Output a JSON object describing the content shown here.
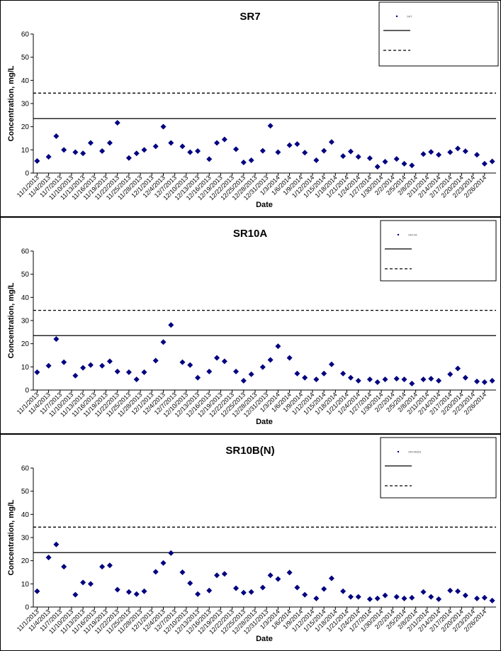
{
  "chart_data": [
    {
      "type": "scatter",
      "title": "SR7",
      "x_label": "Date",
      "y_label": "Concentration, mg/L",
      "x": [
        "11/1/2013",
        "11/4/2013",
        "11/6/2013",
        "11/8/2013",
        "11/11/2013",
        "11/13/2013",
        "11/15/2013",
        "11/18/2013",
        "11/20/2013",
        "11/22/2013",
        "11/25/2013",
        "11/27/2013",
        "11/29/2013",
        "12/2/2013",
        "12/4/2013",
        "12/6/2013",
        "12/9/2013",
        "12/11/2013",
        "12/13/2013",
        "12/16/2013",
        "12/18/2013",
        "12/20/2013",
        "12/23/2013",
        "12/25/2013",
        "12/27/2013",
        "12/30/2013",
        "1/1/2014",
        "1/3/2014",
        "1/6/2014",
        "1/8/2014",
        "1/10/2014",
        "1/13/2014",
        "1/15/2014",
        "1/17/2014",
        "1/20/2014",
        "1/22/2014",
        "1/24/2014",
        "1/27/2014",
        "1/29/2014",
        "1/31/2014",
        "2/3/2014",
        "2/5/2014",
        "2/7/2014",
        "2/10/2014",
        "2/12/2014",
        "2/14/2014",
        "2/17/2014",
        "2/19/2014",
        "2/21/2014",
        "2/24/2014",
        "2/26/2014",
        "2/28/2014"
      ],
      "series": [
        {
          "name": "SR7",
          "color": "#000080",
          "values": [
            5.2,
            7,
            15.9,
            10,
            9,
            8.5,
            13,
            9.5,
            13,
            21.7,
            6.5,
            8.5,
            10,
            11.5,
            20,
            13,
            11.5,
            9,
            9.5,
            6,
            13,
            14.5,
            10.3,
            4.6,
            5.5,
            9.6,
            20.4,
            9,
            12,
            12.5,
            8.8,
            5.5,
            9.6,
            13.4,
            7.3,
            9.3,
            7,
            6.4,
            2.7,
            4.9,
            6.1,
            4,
            3.3,
            8.2,
            9.1,
            7.9,
            9,
            10.6,
            9.4,
            7.9,
            4,
            5
          ]
        }
      ],
      "reference_lines": [
        {
          "value": 23.5,
          "style": "solid",
          "color": "#000000"
        },
        {
          "value": 34.5,
          "style": "dashed",
          "color": "#000000"
        }
      ],
      "ylim": [
        0,
        60
      ],
      "yticks": [
        0,
        10,
        20,
        30,
        40,
        50,
        60
      ],
      "xlim": [
        "10/31/2013",
        "3/1/2014"
      ],
      "xticks": [
        "11/1/2013",
        "11/4/2013",
        "11/7/2013",
        "11/10/2013",
        "11/13/2013",
        "11/16/2013",
        "11/19/2013",
        "11/22/2013",
        "11/25/2013",
        "11/28/2013",
        "12/1/2013",
        "12/4/2013",
        "12/7/2013",
        "12/10/2013",
        "12/13/2013",
        "12/16/2013",
        "12/19/2013",
        "12/22/2013",
        "12/25/2013",
        "12/28/2013",
        "12/31/2013",
        "1/3/2014",
        "1/6/2014",
        "1/9/2014",
        "1/12/2014",
        "1/15/2014",
        "1/18/2014",
        "1/21/2014",
        "1/24/2014",
        "1/27/2014",
        "1/30/2014",
        "2/2/2014",
        "2/5/2014",
        "2/8/2014",
        "2/11/2014",
        "2/14/2014",
        "2/17/2014",
        "2/20/2014",
        "2/23/2014",
        "2/26/2014"
      ]
    },
    {
      "type": "scatter",
      "title": "SR10A",
      "x_label": "Date",
      "y_label": "Concentration, mg/L",
      "x": [
        "11/1/2013",
        "11/4/2013",
        "11/6/2013",
        "11/8/2013",
        "11/11/2013",
        "11/13/2013",
        "11/15/2013",
        "11/18/2013",
        "11/20/2013",
        "11/22/2013",
        "11/25/2013",
        "11/27/2013",
        "11/29/2013",
        "12/2/2013",
        "12/4/2013",
        "12/6/2013",
        "12/9/2013",
        "12/11/2013",
        "12/13/2013",
        "12/16/2013",
        "12/18/2013",
        "12/20/2013",
        "12/23/2013",
        "12/25/2013",
        "12/27/2013",
        "12/30/2013",
        "1/1/2014",
        "1/3/2014",
        "1/6/2014",
        "1/8/2014",
        "1/10/2014",
        "1/13/2014",
        "1/15/2014",
        "1/17/2014",
        "1/20/2014",
        "1/22/2014",
        "1/24/2014",
        "1/27/2014",
        "1/29/2014",
        "1/31/2014",
        "2/3/2014",
        "2/5/2014",
        "2/7/2014",
        "2/10/2014",
        "2/12/2014",
        "2/14/2014",
        "2/17/2014",
        "2/19/2014",
        "2/21/2014",
        "2/24/2014",
        "2/26/2014",
        "2/28/2014"
      ],
      "series": [
        {
          "name": "SR10A",
          "color": "#000080",
          "values": [
            7.7,
            10.5,
            22,
            12,
            6.2,
            9.6,
            10.8,
            10.5,
            12.4,
            8,
            7.7,
            4.6,
            7.7,
            12.7,
            20.7,
            28.1,
            12,
            10.8,
            5.3,
            8,
            13.9,
            12.4,
            8,
            4,
            6.8,
            9.9,
            13,
            18.9,
            13.9,
            7.1,
            5.3,
            4.6,
            7.1,
            11.1,
            7.1,
            5.3,
            4,
            4.6,
            3.4,
            4.6,
            4.9,
            4.6,
            2.8,
            4.6,
            4.9,
            4,
            6.8,
            9.3,
            5.3,
            3.7,
            3.4,
            4
          ]
        }
      ],
      "reference_lines": [
        {
          "value": 23.5,
          "style": "solid",
          "color": "#000000"
        },
        {
          "value": 34.4,
          "style": "dashed",
          "color": "#000000"
        }
      ],
      "ylim": [
        0,
        60
      ],
      "yticks": [
        0,
        10,
        20,
        30,
        40,
        50,
        60
      ],
      "xlim": [
        "10/31/2013",
        "3/1/2014"
      ],
      "xticks": [
        "11/1/2013",
        "11/4/2013",
        "11/7/2013",
        "11/10/2013",
        "11/13/2013",
        "11/16/2013",
        "11/19/2013",
        "11/22/2013",
        "11/25/2013",
        "11/28/2013",
        "12/1/2013",
        "12/4/2013",
        "12/7/2013",
        "12/10/2013",
        "12/13/2013",
        "12/16/2013",
        "12/19/2013",
        "12/22/2013",
        "12/25/2013",
        "12/28/2013",
        "12/31/2013",
        "1/3/2014",
        "1/6/2014",
        "1/9/2014",
        "1/12/2014",
        "1/15/2014",
        "1/18/2014",
        "1/21/2014",
        "1/24/2014",
        "1/27/2014",
        "1/30/2014",
        "2/2/2014",
        "2/5/2014",
        "2/8/2014",
        "2/11/2014",
        "2/14/2014",
        "2/17/2014",
        "2/20/2014",
        "2/23/2014",
        "2/26/2014"
      ]
    },
    {
      "type": "scatter",
      "title": "SR10B(N)",
      "x_label": "Date",
      "y_label": "Concentration, mg/L",
      "x": [
        "11/1/2013",
        "11/4/2013",
        "11/6/2013",
        "11/8/2013",
        "11/11/2013",
        "11/13/2013",
        "11/15/2013",
        "11/18/2013",
        "11/20/2013",
        "11/22/2013",
        "11/25/2013",
        "11/27/2013",
        "11/29/2013",
        "12/2/2013",
        "12/4/2013",
        "12/6/2013",
        "12/9/2013",
        "12/11/2013",
        "12/13/2013",
        "12/16/2013",
        "12/18/2013",
        "12/20/2013",
        "12/23/2013",
        "12/25/2013",
        "12/27/2013",
        "12/30/2013",
        "1/1/2014",
        "1/3/2014",
        "1/6/2014",
        "1/8/2014",
        "1/10/2014",
        "1/13/2014",
        "1/15/2014",
        "1/17/2014",
        "1/20/2014",
        "1/22/2014",
        "1/24/2014",
        "1/27/2014",
        "1/29/2014",
        "1/31/2014",
        "2/3/2014",
        "2/5/2014",
        "2/7/2014",
        "2/10/2014",
        "2/12/2014",
        "2/14/2014",
        "2/17/2014",
        "2/19/2014",
        "2/21/2014",
        "2/24/2014",
        "2/26/2014",
        "2/28/2014"
      ],
      "series": [
        {
          "name": "SR10B(N)",
          "color": "#000080",
          "values": [
            6.8,
            21.4,
            27,
            17.4,
            5.3,
            10.6,
            10,
            17.4,
            18,
            7.5,
            6.5,
            5.6,
            6.8,
            15.2,
            19,
            23.3,
            15,
            10.3,
            5.6,
            7.1,
            13.7,
            14.3,
            8.1,
            6.2,
            6.5,
            8.4,
            13.7,
            12.1,
            14.9,
            8.4,
            5.3,
            3.7,
            7.8,
            12.4,
            6.8,
            4.4,
            4.4,
            3.4,
            3.7,
            5,
            4.4,
            3.7,
            4,
            6.5,
            4.4,
            3.4,
            7.1,
            6.8,
            5,
            3.7,
            4,
            2.8
          ]
        }
      ],
      "reference_lines": [
        {
          "value": 23.5,
          "style": "solid",
          "color": "#000000"
        },
        {
          "value": 34.5,
          "style": "dashed",
          "color": "#000000"
        }
      ],
      "ylim": [
        0,
        60
      ],
      "yticks": [
        0,
        10,
        20,
        30,
        40,
        50,
        60
      ],
      "xlim": [
        "10/31/2013",
        "3/1/2014"
      ],
      "xticks": [
        "11/1/2013",
        "11/4/2013",
        "11/7/2013",
        "11/10/2013",
        "11/13/2013",
        "11/16/2013",
        "11/19/2013",
        "11/22/2013",
        "11/25/2013",
        "11/28/2013",
        "12/1/2013",
        "12/4/2013",
        "12/7/2013",
        "12/10/2013",
        "12/13/2013",
        "12/16/2013",
        "12/19/2013",
        "12/22/2013",
        "12/25/2013",
        "12/28/2013",
        "12/31/2013",
        "1/3/2014",
        "1/6/2014",
        "1/9/2014",
        "1/12/2014",
        "1/15/2014",
        "1/18/2014",
        "1/21/2014",
        "1/24/2014",
        "1/27/2014",
        "1/30/2014",
        "2/2/2014",
        "2/5/2014",
        "2/8/2014",
        "2/11/2014",
        "2/14/2014",
        "2/17/2014",
        "2/20/2014",
        "2/23/2014",
        "2/26/2014"
      ]
    }
  ]
}
